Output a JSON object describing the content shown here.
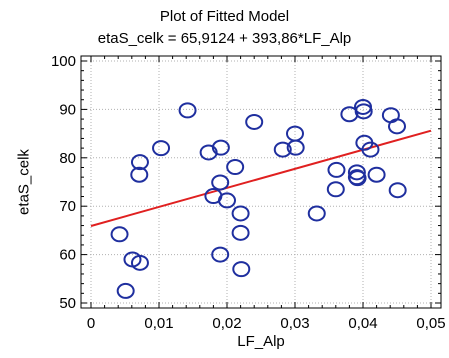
{
  "chart_data": {
    "type": "scatter",
    "title": "Plot of Fitted Model",
    "subtitle": "etaS_celk = 65,9124 + 393,86*LF_Alp",
    "xlabel": "LF_Alp",
    "ylabel": "etaS_celk",
    "xlim": [
      0,
      0.05
    ],
    "ylim": [
      50,
      100
    ],
    "xticks": [
      {
        "value": 0,
        "label": "0"
      },
      {
        "value": 0.01,
        "label": "0,01"
      },
      {
        "value": 0.02,
        "label": "0,02"
      },
      {
        "value": 0.03,
        "label": "0,03"
      },
      {
        "value": 0.04,
        "label": "0,04"
      },
      {
        "value": 0.05,
        "label": "0,05"
      }
    ],
    "yticks": [
      {
        "value": 50,
        "label": "50"
      },
      {
        "value": 60,
        "label": "60"
      },
      {
        "value": 70,
        "label": "70"
      },
      {
        "value": 80,
        "label": "80"
      },
      {
        "value": 90,
        "label": "90"
      },
      {
        "value": 100,
        "label": "100"
      }
    ],
    "grid": true,
    "fit": {
      "intercept": 65.9124,
      "slope": 393.86,
      "x_range": [
        0,
        0.05
      ],
      "color": "#e02020"
    },
    "marker_color": "#1f2f9f",
    "points": [
      {
        "x": 0.0042,
        "y": 64.2
      },
      {
        "x": 0.0051,
        "y": 52.5
      },
      {
        "x": 0.0061,
        "y": 59.0
      },
      {
        "x": 0.0072,
        "y": 58.3
      },
      {
        "x": 0.0071,
        "y": 76.5
      },
      {
        "x": 0.0072,
        "y": 79.1
      },
      {
        "x": 0.0103,
        "y": 82.0
      },
      {
        "x": 0.0142,
        "y": 89.8
      },
      {
        "x": 0.0173,
        "y": 81.1
      },
      {
        "x": 0.018,
        "y": 72.1
      },
      {
        "x": 0.019,
        "y": 60.0
      },
      {
        "x": 0.0191,
        "y": 82.1
      },
      {
        "x": 0.019,
        "y": 74.9
      },
      {
        "x": 0.02,
        "y": 71.2
      },
      {
        "x": 0.0212,
        "y": 78.1
      },
      {
        "x": 0.022,
        "y": 68.5
      },
      {
        "x": 0.022,
        "y": 64.5
      },
      {
        "x": 0.0221,
        "y": 57.0
      },
      {
        "x": 0.024,
        "y": 87.4
      },
      {
        "x": 0.0282,
        "y": 81.7
      },
      {
        "x": 0.03,
        "y": 85.0
      },
      {
        "x": 0.0301,
        "y": 82.1
      },
      {
        "x": 0.0332,
        "y": 68.5
      },
      {
        "x": 0.036,
        "y": 73.5
      },
      {
        "x": 0.0361,
        "y": 77.5
      },
      {
        "x": 0.038,
        "y": 89.0
      },
      {
        "x": 0.0391,
        "y": 77.0
      },
      {
        "x": 0.0391,
        "y": 76.0
      },
      {
        "x": 0.0392,
        "y": 75.8
      },
      {
        "x": 0.04,
        "y": 90.5
      },
      {
        "x": 0.0401,
        "y": 89.6
      },
      {
        "x": 0.0402,
        "y": 83.1
      },
      {
        "x": 0.0411,
        "y": 81.7
      },
      {
        "x": 0.042,
        "y": 76.5
      },
      {
        "x": 0.0441,
        "y": 88.8
      },
      {
        "x": 0.045,
        "y": 86.5
      },
      {
        "x": 0.0451,
        "y": 73.3
      }
    ]
  }
}
